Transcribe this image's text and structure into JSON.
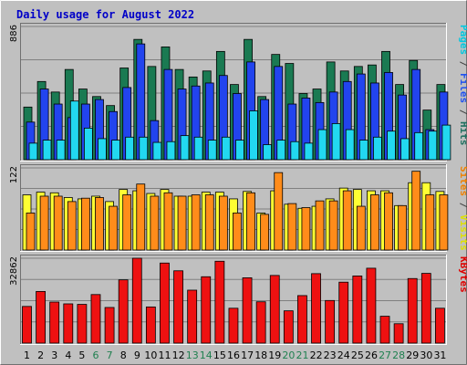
{
  "chart_data": {
    "type": "bar",
    "title": "Daily usage for August 2022",
    "days": [
      "1",
      "2",
      "3",
      "4",
      "5",
      "6",
      "7",
      "8",
      "9",
      "10",
      "11",
      "12",
      "13",
      "14",
      "15",
      "16",
      "17",
      "18",
      "19",
      "20",
      "21",
      "22",
      "23",
      "24",
      "25",
      "26",
      "27",
      "28",
      "29",
      "30",
      "31"
    ],
    "weekend_days": [
      "6",
      "7",
      "13",
      "14",
      "20",
      "21",
      "27",
      "28"
    ],
    "panels": [
      {
        "name": "hits-files-pages",
        "max_label": "886",
        "ymax": 886,
        "labels": [
          {
            "text": "Pages",
            "color": "#00c8e0"
          },
          {
            "text": " / ",
            "color": "#404040"
          },
          {
            "text": "Files",
            "color": "#2050f0"
          },
          {
            "text": " / ",
            "color": "#404040"
          },
          {
            "text": "Hits",
            "color": "#207060"
          }
        ],
        "series": [
          {
            "name": "Hits",
            "color": "#1a7a52",
            "values": [
              350,
              520,
              450,
              600,
              470,
              420,
              360,
              610,
              800,
              620,
              750,
              600,
              550,
              590,
              720,
              500,
              800,
              420,
              700,
              640,
              440,
              470,
              650,
              590,
              620,
              630,
              720,
              500,
              660,
              330,
              500
            ]
          },
          {
            "name": "Files",
            "color": "#2244ee",
            "values": [
              250,
              470,
              370,
              280,
              370,
              400,
              320,
              480,
              770,
              260,
              600,
              470,
              490,
              510,
              560,
              440,
              650,
              400,
              620,
              370,
              410,
              380,
              450,
              520,
              570,
              510,
              580,
              430,
              600,
              200,
              450
            ]
          },
          {
            "name": "Pages",
            "color": "#22d8f0",
            "values": [
              110,
              130,
              130,
              390,
              210,
              140,
              130,
              150,
              150,
              115,
              120,
              160,
              150,
              130,
              150,
              130,
              325,
              100,
              130,
              120,
              110,
              200,
              240,
              200,
              130,
              150,
              190,
              140,
              180,
              190,
              230
            ]
          }
        ]
      },
      {
        "name": "visits-sites",
        "max_label": "122",
        "ymax": 122,
        "labels": [
          {
            "text": "Sites",
            "color": "#f08000"
          },
          {
            "text": " / ",
            "color": "#404040"
          },
          {
            "text": "Visits",
            "color": "#e0e000"
          }
        ],
        "series": [
          {
            "name": "Visits",
            "color": "#ffff33",
            "values": [
              82,
              86,
              85,
              78,
              76,
              80,
              72,
              90,
              88,
              84,
              90,
              80,
              80,
              86,
              86,
              76,
              87,
              55,
              88,
              68,
              62,
              65,
              76,
              92,
              90,
              88,
              88,
              66,
              100,
              100,
              87
            ]
          },
          {
            "name": "Sites",
            "color": "#ff8c1a",
            "values": [
              55,
              80,
              80,
              72,
              77,
              78,
              65,
              82,
              98,
              80,
              85,
              80,
              82,
              82,
              80,
              55,
              85,
              53,
              115,
              69,
              63,
              73,
              73,
              88,
              65,
              82,
              85,
              66,
              117,
              82,
              82
            ]
          }
        ]
      },
      {
        "name": "kbytes",
        "max_label": "32862",
        "ymax": 32862,
        "labels": [
          {
            "text": "KBytes",
            "color": "#e00000"
          }
        ],
        "series": [
          {
            "name": "KBytes",
            "color": "#ee1111",
            "values": [
              14200,
              20000,
              15900,
              15200,
              15000,
              18800,
              13800,
              24500,
              32862,
              14000,
              31000,
              28000,
              20500,
              25700,
              31700,
              13500,
              25300,
              16000,
              26200,
              12500,
              18400,
              26900,
              16500,
              23600,
              26000,
              29000,
              10400,
              7500,
              25000,
              27000,
              13500
            ]
          }
        ]
      }
    ]
  }
}
